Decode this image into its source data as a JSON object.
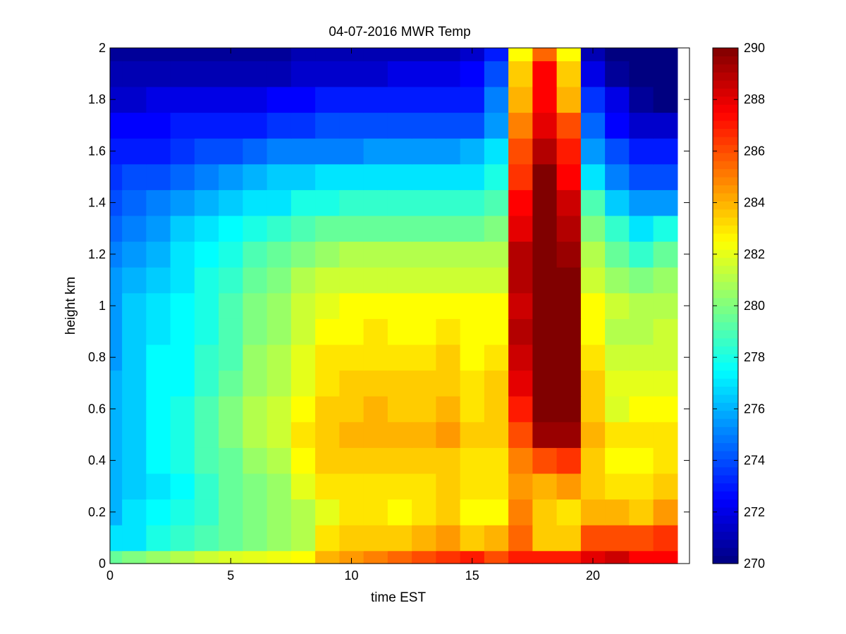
{
  "chart_data": {
    "type": "heatmap",
    "title": "04-07-2016 MWR Temp",
    "xlabel": "time EST",
    "ylabel": "height km",
    "xlim": [
      0,
      24
    ],
    "ylim": [
      0,
      2
    ],
    "x_ticks": [
      0,
      5,
      10,
      15,
      20
    ],
    "x_tick_labels": [
      "0",
      "5",
      "10",
      "15",
      "20"
    ],
    "y_ticks": [
      0,
      0.2,
      0.4,
      0.6,
      0.8,
      1,
      1.2,
      1.4,
      1.6,
      1.8,
      2
    ],
    "y_tick_labels": [
      "0",
      "0.2",
      "0.4",
      "0.6",
      "0.8",
      "1",
      "1.2",
      "1.4",
      "1.6",
      "1.8",
      "2"
    ],
    "colorbar": {
      "min": 270,
      "max": 290,
      "ticks": [
        270,
        272,
        274,
        276,
        278,
        280,
        282,
        284,
        286,
        288,
        290
      ],
      "tick_labels": [
        "270",
        "272",
        "274",
        "276",
        "278",
        "280",
        "282",
        "284",
        "286",
        "288",
        "290"
      ],
      "colormap": "jet"
    },
    "x": [
      0,
      1,
      2,
      3,
      4,
      5,
      6,
      7,
      8,
      9,
      10,
      11,
      12,
      13,
      14,
      15,
      16,
      17,
      18,
      19,
      20,
      21,
      22,
      23
    ],
    "y": [
      0,
      0.1,
      0.2,
      0.3,
      0.4,
      0.5,
      0.6,
      0.7,
      0.8,
      0.9,
      1.0,
      1.1,
      1.2,
      1.3,
      1.4,
      1.5,
      1.6,
      1.7,
      1.8,
      1.9,
      2.0
    ],
    "z": [
      [
        279.5,
        280.0,
        280.5,
        281.0,
        281.5,
        281.8,
        282.0,
        282.2,
        282.5,
        284.0,
        284.5,
        285.0,
        285.5,
        286.0,
        286.5,
        287.0,
        286.0,
        287.0,
        287.0,
        287.0,
        288.0,
        288.5,
        287.5,
        287.5
      ],
      [
        277.0,
        277.0,
        278.0,
        278.5,
        279.0,
        279.5,
        280.0,
        280.5,
        281.0,
        283.0,
        283.5,
        283.5,
        283.5,
        284.0,
        284.5,
        283.5,
        284.0,
        285.5,
        283.5,
        283.5,
        286.0,
        286.0,
        286.0,
        286.5
      ],
      [
        276.0,
        277.0,
        277.5,
        278.0,
        278.5,
        279.5,
        280.0,
        280.5,
        281.0,
        282.0,
        283.0,
        283.0,
        282.5,
        283.0,
        283.5,
        282.5,
        282.5,
        285.0,
        283.5,
        283.0,
        284.0,
        284.0,
        283.5,
        284.5
      ],
      [
        276.0,
        276.5,
        277.0,
        277.5,
        278.5,
        279.5,
        280.0,
        280.5,
        282.0,
        283.0,
        283.0,
        283.0,
        283.0,
        283.0,
        283.5,
        283.0,
        283.0,
        284.5,
        284.0,
        284.5,
        283.5,
        283.0,
        283.0,
        283.5
      ],
      [
        276.0,
        276.5,
        277.5,
        278.0,
        279.0,
        279.5,
        280.5,
        281.0,
        282.5,
        283.5,
        283.5,
        283.5,
        283.5,
        283.5,
        283.5,
        283.0,
        283.0,
        285.0,
        286.0,
        286.5,
        283.5,
        282.5,
        282.5,
        283.0
      ],
      [
        276.0,
        276.5,
        277.5,
        278.0,
        279.0,
        280.0,
        281.0,
        281.5,
        283.0,
        283.5,
        284.0,
        284.0,
        284.0,
        284.0,
        284.5,
        283.5,
        283.5,
        286.0,
        289.5,
        289.5,
        284.0,
        283.0,
        283.0,
        283.0
      ],
      [
        276.0,
        276.5,
        277.5,
        278.0,
        279.0,
        280.0,
        281.0,
        281.5,
        282.5,
        283.5,
        283.5,
        284.0,
        283.5,
        283.5,
        284.0,
        283.0,
        283.5,
        287.0,
        290.0,
        290.0,
        283.5,
        281.8,
        282.5,
        282.5
      ],
      [
        276.0,
        276.5,
        277.5,
        277.5,
        278.5,
        279.5,
        280.5,
        281.0,
        282.0,
        283.0,
        283.5,
        283.5,
        283.5,
        283.5,
        283.5,
        283.0,
        283.5,
        288.0,
        290.0,
        290.0,
        283.5,
        282.0,
        282.0,
        282.0
      ],
      [
        275.5,
        276.5,
        277.5,
        277.5,
        278.5,
        279.0,
        280.5,
        281.0,
        282.0,
        283.0,
        283.0,
        283.0,
        283.0,
        283.0,
        283.5,
        282.5,
        283.0,
        288.5,
        290.0,
        290.0,
        283.0,
        281.5,
        281.5,
        281.5
      ],
      [
        275.5,
        276.5,
        277.0,
        277.5,
        278.0,
        279.0,
        280.0,
        280.5,
        281.5,
        282.5,
        282.5,
        283.0,
        282.5,
        282.5,
        283.0,
        282.5,
        282.5,
        289.0,
        290.0,
        290.0,
        282.5,
        281.0,
        281.0,
        281.5
      ],
      [
        275.5,
        276.5,
        277.0,
        277.5,
        278.0,
        279.0,
        280.0,
        280.5,
        281.5,
        282.0,
        282.5,
        282.5,
        282.5,
        282.5,
        282.5,
        282.5,
        282.5,
        288.5,
        290.0,
        290.0,
        282.5,
        281.5,
        281.0,
        281.0
      ],
      [
        275.5,
        276.0,
        276.5,
        277.0,
        278.0,
        278.5,
        279.5,
        280.0,
        281.0,
        281.5,
        281.5,
        281.5,
        281.5,
        281.5,
        281.5,
        281.5,
        281.5,
        289.0,
        290.0,
        290.0,
        281.5,
        280.5,
        280.0,
        280.5
      ],
      [
        275.0,
        275.5,
        276.0,
        277.0,
        277.5,
        278.0,
        279.0,
        279.5,
        280.0,
        280.5,
        281.0,
        281.0,
        281.0,
        281.0,
        281.0,
        281.0,
        281.0,
        289.0,
        290.0,
        289.5,
        281.0,
        279.5,
        278.5,
        279.5
      ],
      [
        274.5,
        275.0,
        275.5,
        276.5,
        277.0,
        277.5,
        278.0,
        278.5,
        279.0,
        279.5,
        279.5,
        279.5,
        279.5,
        279.5,
        279.5,
        279.5,
        280.0,
        288.0,
        290.0,
        289.0,
        280.0,
        278.5,
        277.0,
        278.0
      ],
      [
        274.0,
        274.5,
        275.0,
        275.5,
        276.0,
        276.5,
        277.0,
        277.0,
        278.0,
        278.0,
        278.5,
        278.5,
        278.5,
        278.5,
        278.5,
        278.5,
        279.0,
        287.5,
        290.0,
        288.5,
        279.0,
        276.5,
        275.5,
        275.5
      ],
      [
        273.5,
        274.0,
        274.0,
        274.5,
        275.0,
        275.5,
        276.0,
        276.5,
        276.5,
        277.0,
        277.0,
        277.0,
        277.0,
        277.0,
        277.0,
        277.0,
        278.0,
        286.5,
        290.0,
        287.5,
        277.0,
        275.0,
        274.0,
        274.0
      ],
      [
        273.0,
        273.0,
        273.0,
        273.5,
        274.0,
        274.0,
        274.5,
        275.0,
        275.0,
        275.0,
        275.0,
        275.5,
        275.5,
        275.5,
        275.5,
        276.0,
        277.0,
        286.0,
        289.0,
        287.0,
        275.5,
        274.0,
        273.0,
        273.0
      ],
      [
        272.5,
        272.5,
        272.5,
        273.0,
        273.0,
        273.0,
        273.0,
        273.5,
        273.5,
        274.0,
        274.0,
        274.0,
        274.0,
        274.0,
        274.0,
        274.0,
        275.5,
        285.0,
        288.0,
        286.0,
        274.5,
        272.5,
        271.5,
        271.5
      ],
      [
        271.5,
        271.5,
        272.0,
        272.0,
        272.0,
        272.0,
        272.0,
        272.5,
        272.5,
        273.0,
        273.0,
        273.0,
        273.0,
        273.0,
        273.0,
        273.0,
        275.0,
        284.0,
        287.5,
        284.0,
        273.5,
        272.0,
        270.5,
        270.0
      ],
      [
        271.0,
        271.0,
        271.0,
        271.0,
        271.0,
        271.0,
        271.0,
        271.0,
        271.5,
        271.5,
        271.5,
        271.5,
        272.0,
        272.0,
        272.0,
        272.5,
        274.0,
        283.5,
        287.5,
        283.5,
        272.0,
        270.5,
        270.0,
        270.0
      ],
      [
        270.5,
        270.5,
        270.5,
        270.5,
        270.5,
        270.5,
        270.5,
        270.5,
        271.0,
        271.0,
        271.0,
        271.0,
        271.0,
        271.0,
        271.0,
        271.5,
        273.0,
        282.5,
        285.5,
        282.5,
        271.0,
        270.0,
        270.0,
        270.0
      ]
    ]
  }
}
